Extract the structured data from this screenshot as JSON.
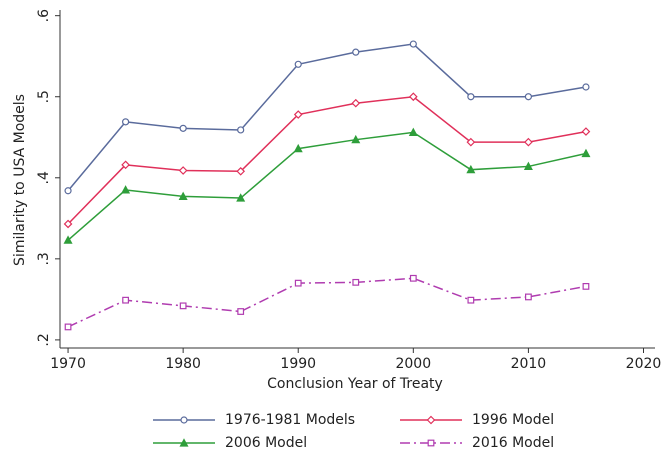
{
  "chart_data": {
    "type": "line",
    "x_label": "Conclusion Year of Treaty",
    "y_label": "Similarity to USA Models",
    "x": [
      1970,
      1975,
      1980,
      1985,
      1990,
      1995,
      2000,
      2005,
      2010,
      2015
    ],
    "xlim": [
      1969.3,
      2021
    ],
    "xticks": [
      1970,
      1980,
      1990,
      2000,
      2010,
      2020
    ],
    "ylim": [
      0.19,
      0.607
    ],
    "yticks": [
      {
        "value": 0.2,
        "label": ".2"
      },
      {
        "value": 0.3,
        "label": ".3"
      },
      {
        "value": 0.4,
        "label": ".4"
      },
      {
        "value": 0.5,
        "label": ".5"
      },
      {
        "value": 0.6,
        "label": ".6"
      }
    ],
    "grid": false,
    "legend": "bottom",
    "series": [
      {
        "name": "1976-1981 Models",
        "color": "#5a6b9c",
        "marker": "circle",
        "hollow": true,
        "dashed": false,
        "values": [
          0.384,
          0.469,
          0.461,
          0.459,
          0.54,
          0.555,
          0.565,
          0.5,
          0.5,
          0.512
        ]
      },
      {
        "name": "1996 Model",
        "color": "#e0305a",
        "marker": "diamond",
        "hollow": true,
        "dashed": false,
        "values": [
          0.343,
          0.416,
          0.409,
          0.408,
          0.478,
          0.492,
          0.5,
          0.444,
          0.444,
          0.457
        ]
      },
      {
        "name": "2006 Model",
        "color": "#2e9e3a",
        "marker": "triangle",
        "hollow": false,
        "dashed": false,
        "values": [
          0.323,
          0.385,
          0.377,
          0.375,
          0.436,
          0.447,
          0.456,
          0.41,
          0.414,
          0.43
        ]
      },
      {
        "name": "2016 Model",
        "color": "#b03cb0",
        "marker": "square",
        "hollow": true,
        "dashed": true,
        "values": [
          0.216,
          0.249,
          0.242,
          0.235,
          0.27,
          0.271,
          0.276,
          0.249,
          0.253,
          0.266
        ]
      }
    ]
  }
}
